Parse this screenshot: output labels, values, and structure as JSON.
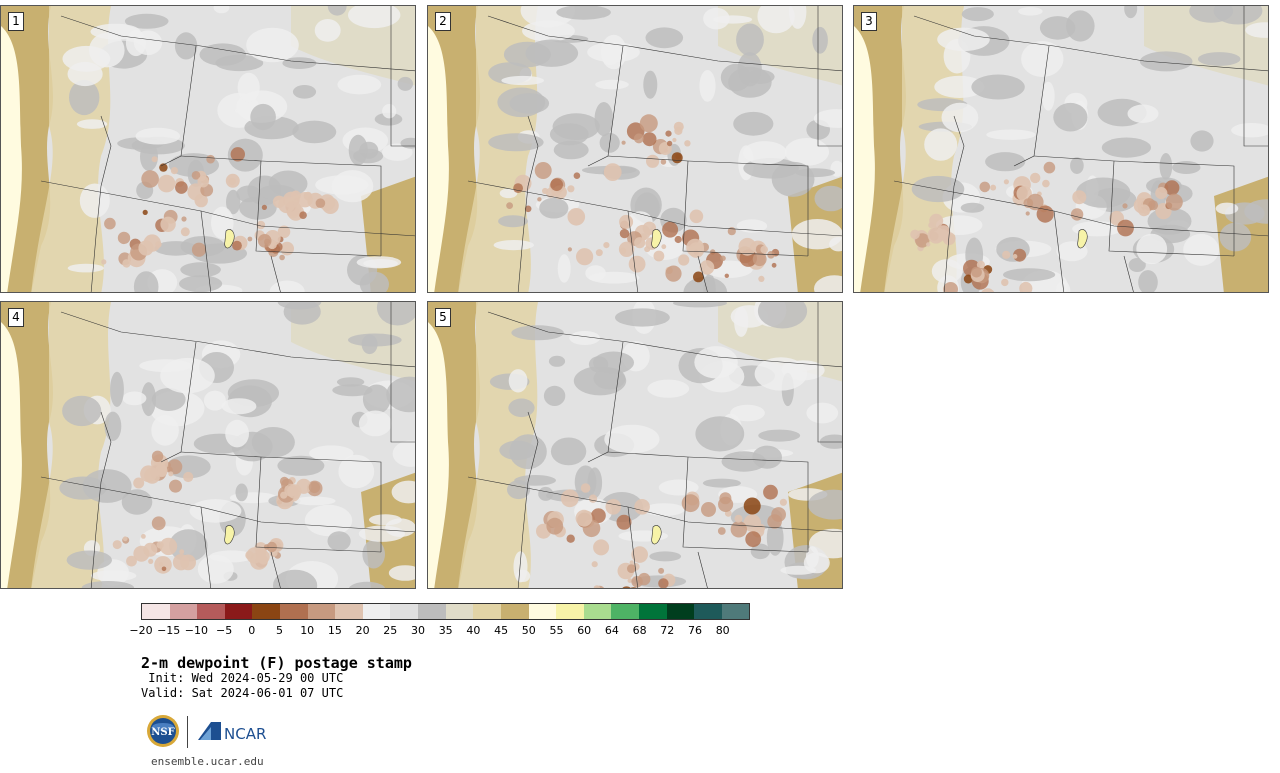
{
  "panels": [
    {
      "label": "1"
    },
    {
      "label": "2"
    },
    {
      "label": "3"
    },
    {
      "label": "4"
    },
    {
      "label": "5"
    }
  ],
  "colorbar": {
    "colors": [
      "#f5e6e6",
      "#d4a0a0",
      "#b55b5b",
      "#8b1a1a",
      "#8b4513",
      "#b07050",
      "#c79a80",
      "#dfc3b0",
      "#efefef",
      "#e0e0e0",
      "#bdbdbd",
      "#e0dcc8",
      "#e2d4a6",
      "#c8b070",
      "#fffbe0",
      "#f7f3a8",
      "#a9dc8f",
      "#4eb365",
      "#00743a",
      "#003e1e",
      "#1e5a5a",
      "#4f7a7a"
    ],
    "tick_labels": [
      "−20",
      "−15",
      "−10",
      "−5",
      "0",
      "5",
      "10",
      "15",
      "20",
      "25",
      "30",
      "35",
      "40",
      "45",
      "50",
      "55",
      "60",
      "64",
      "68",
      "72",
      "76",
      "80"
    ]
  },
  "title": "2-m dewpoint (F) postage stamp",
  "init_text": " Init: Wed 2024-05-29 00 UTC",
  "valid_text": "Valid: Sat 2024-06-01 07 UTC",
  "logos": {
    "nsf": "NSF",
    "ncar": "NCAR"
  },
  "website": "ensemble.ucar.edu"
}
